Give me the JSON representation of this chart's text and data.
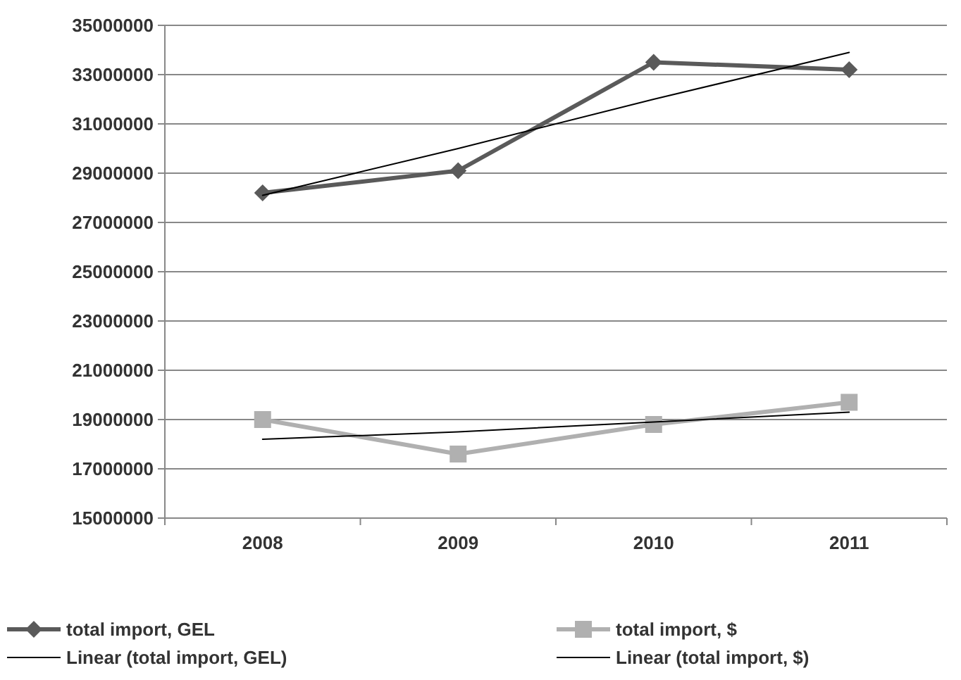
{
  "chart_data": {
    "type": "line",
    "categories": [
      "2008",
      "2009",
      "2010",
      "2011"
    ],
    "series": [
      {
        "name": "total import, GEL",
        "color": "#5a5a5a",
        "values": [
          28200000,
          29100000,
          33500000,
          33200000
        ],
        "marker": "diamond"
      },
      {
        "name": "total import, $",
        "color": "#b0b0b0",
        "values": [
          19000000,
          17600000,
          18800000,
          19700000
        ],
        "marker": "square"
      },
      {
        "name": "Linear (total import, GEL)",
        "color": "#000000",
        "values": [
          28100000,
          30000000,
          32000000,
          33900000
        ],
        "marker": "none"
      },
      {
        "name": "Linear (total import, $)",
        "color": "#000000",
        "values": [
          18200000,
          18500000,
          18900000,
          19300000
        ],
        "marker": "none"
      }
    ],
    "ylim": [
      15000000,
      35000000
    ],
    "yticks": [
      15000000,
      17000000,
      19000000,
      21000000,
      23000000,
      25000000,
      27000000,
      29000000,
      31000000,
      33000000,
      35000000
    ],
    "grid": "y",
    "legend": "bottom",
    "line_style": "solid"
  }
}
